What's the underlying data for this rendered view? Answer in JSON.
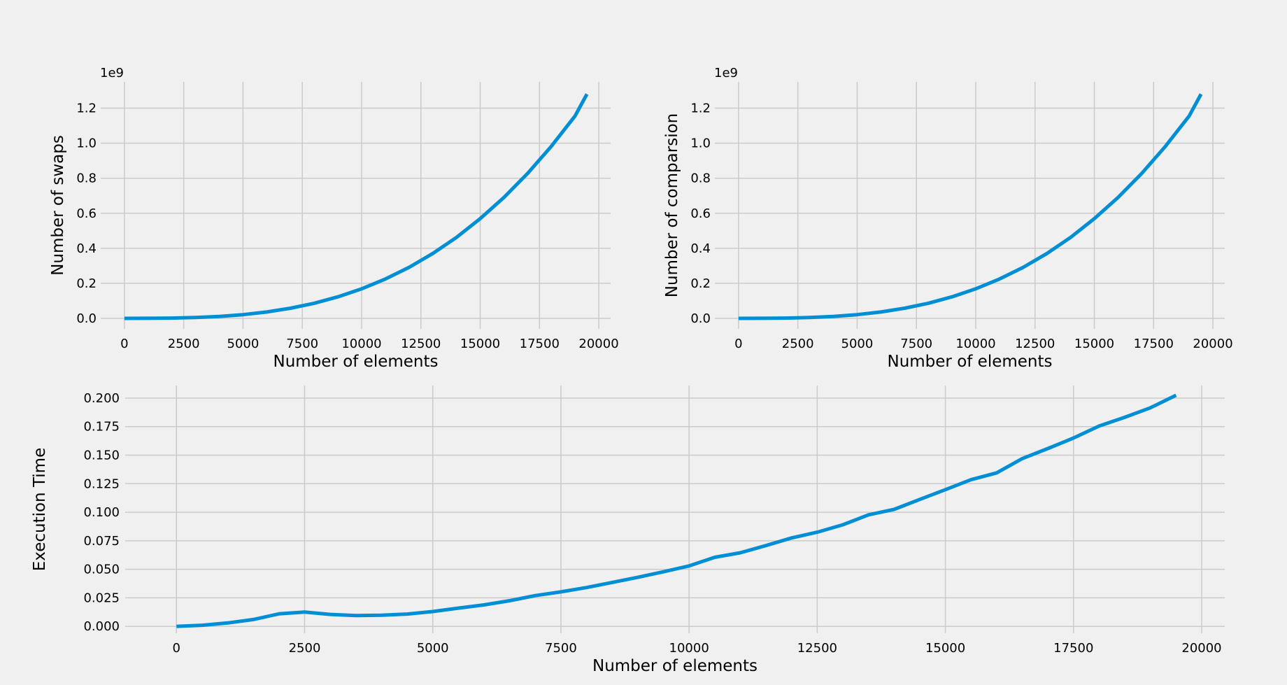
{
  "chart_data": [
    {
      "type": "line",
      "title": "",
      "xlabel": "Number of elements",
      "ylabel": "Number of swaps",
      "offset_label": "1e9",
      "grid": true,
      "xlim": [
        -1000,
        20500
      ],
      "ylim": [
        -0.06,
        1.35
      ],
      "xticks": [
        0,
        2500,
        5000,
        7500,
        10000,
        12500,
        15000,
        17500,
        20000
      ],
      "xtick_labels": [
        "0",
        "2500",
        "5000",
        "7500",
        "10000",
        "12500",
        "15000",
        "17500",
        "20000"
      ],
      "yticks": [
        0.0,
        0.2,
        0.4,
        0.6,
        0.8,
        1.0,
        1.2
      ],
      "ytick_labels": [
        "0.0",
        "0.2",
        "0.4",
        "0.6",
        "0.8",
        "1.0",
        "1.2"
      ],
      "series": [
        {
          "name": "swaps",
          "color": "#008fd5",
          "x": [
            0,
            1000,
            2000,
            3000,
            4000,
            5000,
            6000,
            7000,
            8000,
            9000,
            10000,
            11000,
            12000,
            13000,
            14000,
            15000,
            16000,
            17000,
            18000,
            19000,
            19500
          ],
          "y": [
            0.0,
            0.0002,
            0.0014,
            0.0046,
            0.0108,
            0.021,
            0.0364,
            0.0578,
            0.0862,
            0.1228,
            0.1684,
            0.2242,
            0.291,
            0.37,
            0.462,
            0.569,
            0.69,
            0.827,
            0.982,
            1.155,
            1.28
          ]
        }
      ]
    },
    {
      "type": "line",
      "title": "",
      "xlabel": "Number of elements",
      "ylabel": "Number of comparsion",
      "offset_label": "1e9",
      "grid": true,
      "xlim": [
        -1000,
        20500
      ],
      "ylim": [
        -0.06,
        1.35
      ],
      "xticks": [
        0,
        2500,
        5000,
        7500,
        10000,
        12500,
        15000,
        17500,
        20000
      ],
      "xtick_labels": [
        "0",
        "2500",
        "5000",
        "7500",
        "10000",
        "12500",
        "15000",
        "17500",
        "20000"
      ],
      "yticks": [
        0.0,
        0.2,
        0.4,
        0.6,
        0.8,
        1.0,
        1.2
      ],
      "ytick_labels": [
        "0.0",
        "0.2",
        "0.4",
        "0.6",
        "0.8",
        "1.0",
        "1.2"
      ],
      "series": [
        {
          "name": "comparisons",
          "color": "#008fd5",
          "x": [
            0,
            1000,
            2000,
            3000,
            4000,
            5000,
            6000,
            7000,
            8000,
            9000,
            10000,
            11000,
            12000,
            13000,
            14000,
            15000,
            16000,
            17000,
            18000,
            19000,
            19500
          ],
          "y": [
            0.0,
            0.0002,
            0.0014,
            0.0046,
            0.0108,
            0.021,
            0.0364,
            0.0578,
            0.0862,
            0.1228,
            0.1684,
            0.2242,
            0.291,
            0.37,
            0.462,
            0.569,
            0.69,
            0.827,
            0.982,
            1.155,
            1.28
          ]
        }
      ]
    },
    {
      "type": "line",
      "title": "",
      "xlabel": "Number of elements",
      "ylabel": "Execution Time",
      "offset_label": "",
      "grid": true,
      "xlim": [
        -1000,
        20450
      ],
      "ylim": [
        -0.006,
        0.211
      ],
      "xticks": [
        0,
        2500,
        5000,
        7500,
        10000,
        12500,
        15000,
        17500,
        20000
      ],
      "xtick_labels": [
        "0",
        "2500",
        "5000",
        "7500",
        "10000",
        "12500",
        "15000",
        "17500",
        "20000"
      ],
      "yticks": [
        0.0,
        0.025,
        0.05,
        0.075,
        0.1,
        0.125,
        0.15,
        0.175,
        0.2
      ],
      "ytick_labels": [
        "0.000",
        "0.025",
        "0.050",
        "0.075",
        "0.100",
        "0.125",
        "0.150",
        "0.175",
        "0.200"
      ],
      "series": [
        {
          "name": "execution time",
          "color": "#008fd5",
          "x": [
            0,
            500,
            1000,
            1500,
            2000,
            2500,
            3000,
            3500,
            4000,
            4500,
            5000,
            5500,
            6000,
            6500,
            7000,
            7500,
            8000,
            8500,
            9000,
            9500,
            10000,
            10500,
            11000,
            11500,
            12000,
            12500,
            13000,
            13500,
            14000,
            14500,
            15000,
            15500,
            16000,
            16500,
            17000,
            17500,
            18000,
            18500,
            19000,
            19500
          ],
          "y": [
            0.0,
            0.001,
            0.003,
            0.006,
            0.011,
            0.0125,
            0.0105,
            0.0095,
            0.0098,
            0.0108,
            0.013,
            0.016,
            0.0188,
            0.0225,
            0.027,
            0.0302,
            0.034,
            0.0385,
            0.043,
            0.0478,
            0.053,
            0.0605,
            0.0645,
            0.0708,
            0.0775,
            0.0825,
            0.089,
            0.0977,
            0.1025,
            0.1112,
            0.1198,
            0.1285,
            0.1345,
            0.147,
            0.1558,
            0.165,
            0.1755,
            0.1832,
            0.1915,
            0.2025
          ]
        }
      ]
    }
  ]
}
